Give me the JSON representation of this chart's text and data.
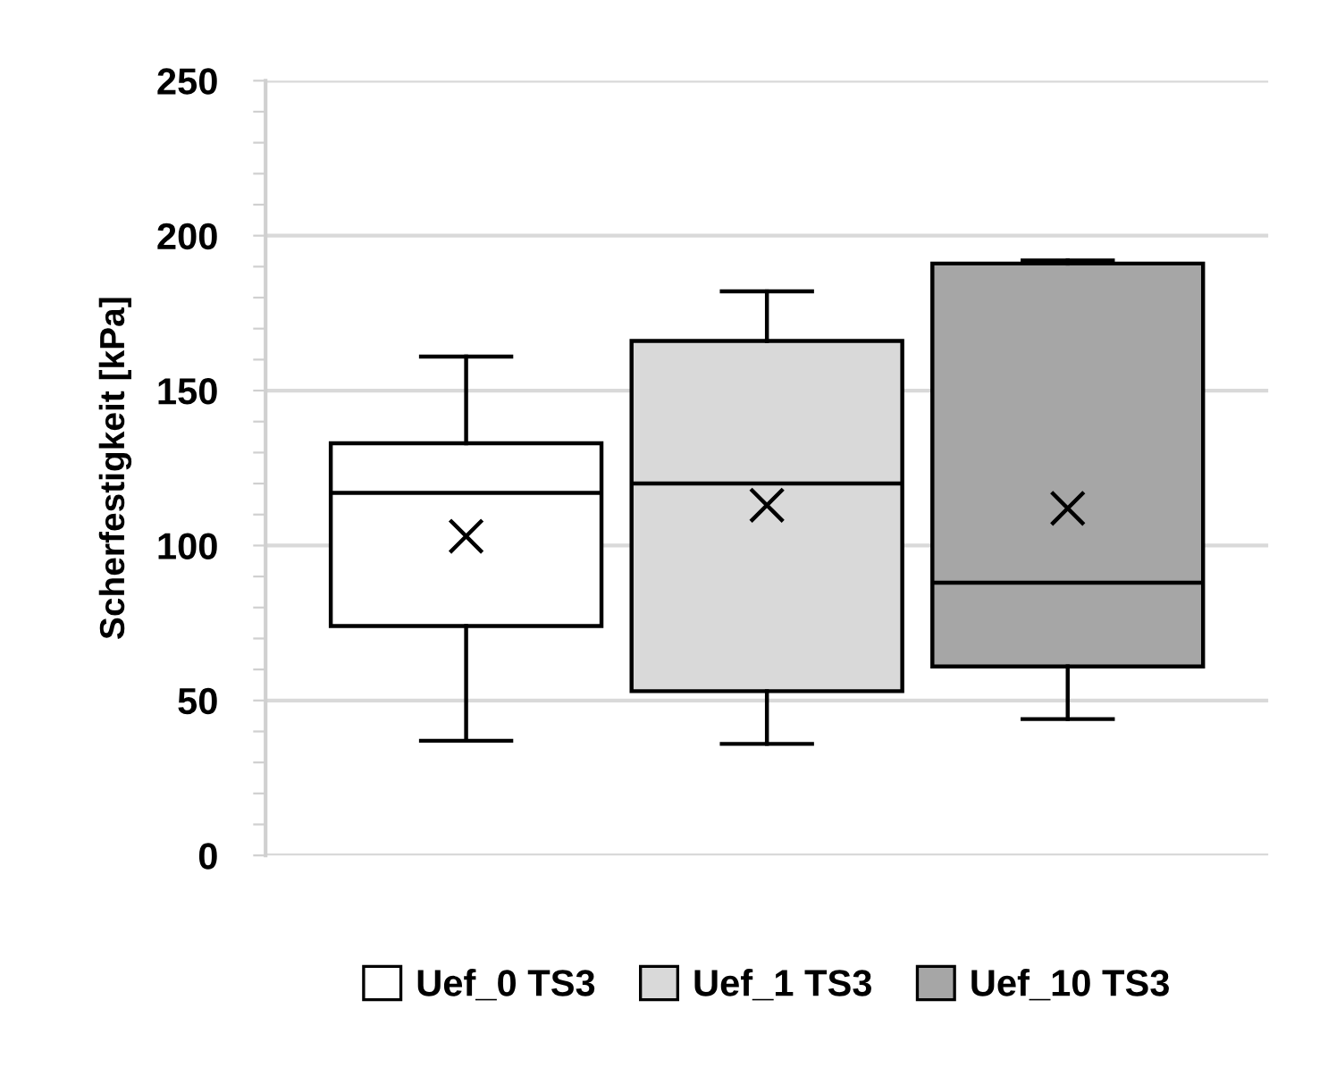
{
  "chart_data": {
    "type": "box",
    "ylabel": "Scherfestigkeit [kPa]",
    "categories": [
      null
    ],
    "series": [
      {
        "name": "Uef_0 TS3",
        "color": "#ffffff",
        "boxes": [
          {
            "low": 37,
            "q1": 74,
            "median": 117,
            "q3": 133,
            "high": 161,
            "mean": 103
          }
        ]
      },
      {
        "name": "Uef_1 TS3",
        "color": "#d9d9d9",
        "boxes": [
          {
            "low": 36,
            "q1": 53,
            "median": 120,
            "q3": 166,
            "high": 182,
            "mean": 113
          }
        ]
      },
      {
        "name": "Uef_10 TS3",
        "color": "#a6a6a6",
        "boxes": [
          {
            "low": 44,
            "q1": 61,
            "median": 88,
            "q3": 191,
            "high": 192,
            "mean": 112
          }
        ]
      }
    ],
    "ylim": [
      0,
      250
    ],
    "yticks": [
      0,
      {
        "value": 10,
        "label": null
      },
      {
        "value": 20,
        "label": null
      },
      {
        "value": 30,
        "label": null
      },
      {
        "value": 40,
        "label": null
      },
      50,
      {
        "value": 60,
        "label": null
      },
      {
        "value": 70,
        "label": null
      },
      {
        "value": 80,
        "label": null
      },
      {
        "value": 90,
        "label": null
      },
      100,
      {
        "value": 110,
        "label": null
      },
      {
        "value": 120,
        "label": null
      },
      {
        "value": 130,
        "label": null
      },
      {
        "value": 140,
        "label": null
      },
      150,
      {
        "value": 160,
        "label": null
      },
      {
        "value": 170,
        "label": null
      },
      {
        "value": 180,
        "label": null
      },
      {
        "value": 190,
        "label": null
      },
      200,
      {
        "value": 210,
        "label": null
      },
      {
        "value": 220,
        "label": null
      },
      {
        "value": 230,
        "label": null
      },
      {
        "value": 240,
        "label": null
      },
      250
    ],
    "grid": "y",
    "legend": "bottom",
    "marker": "cross"
  }
}
